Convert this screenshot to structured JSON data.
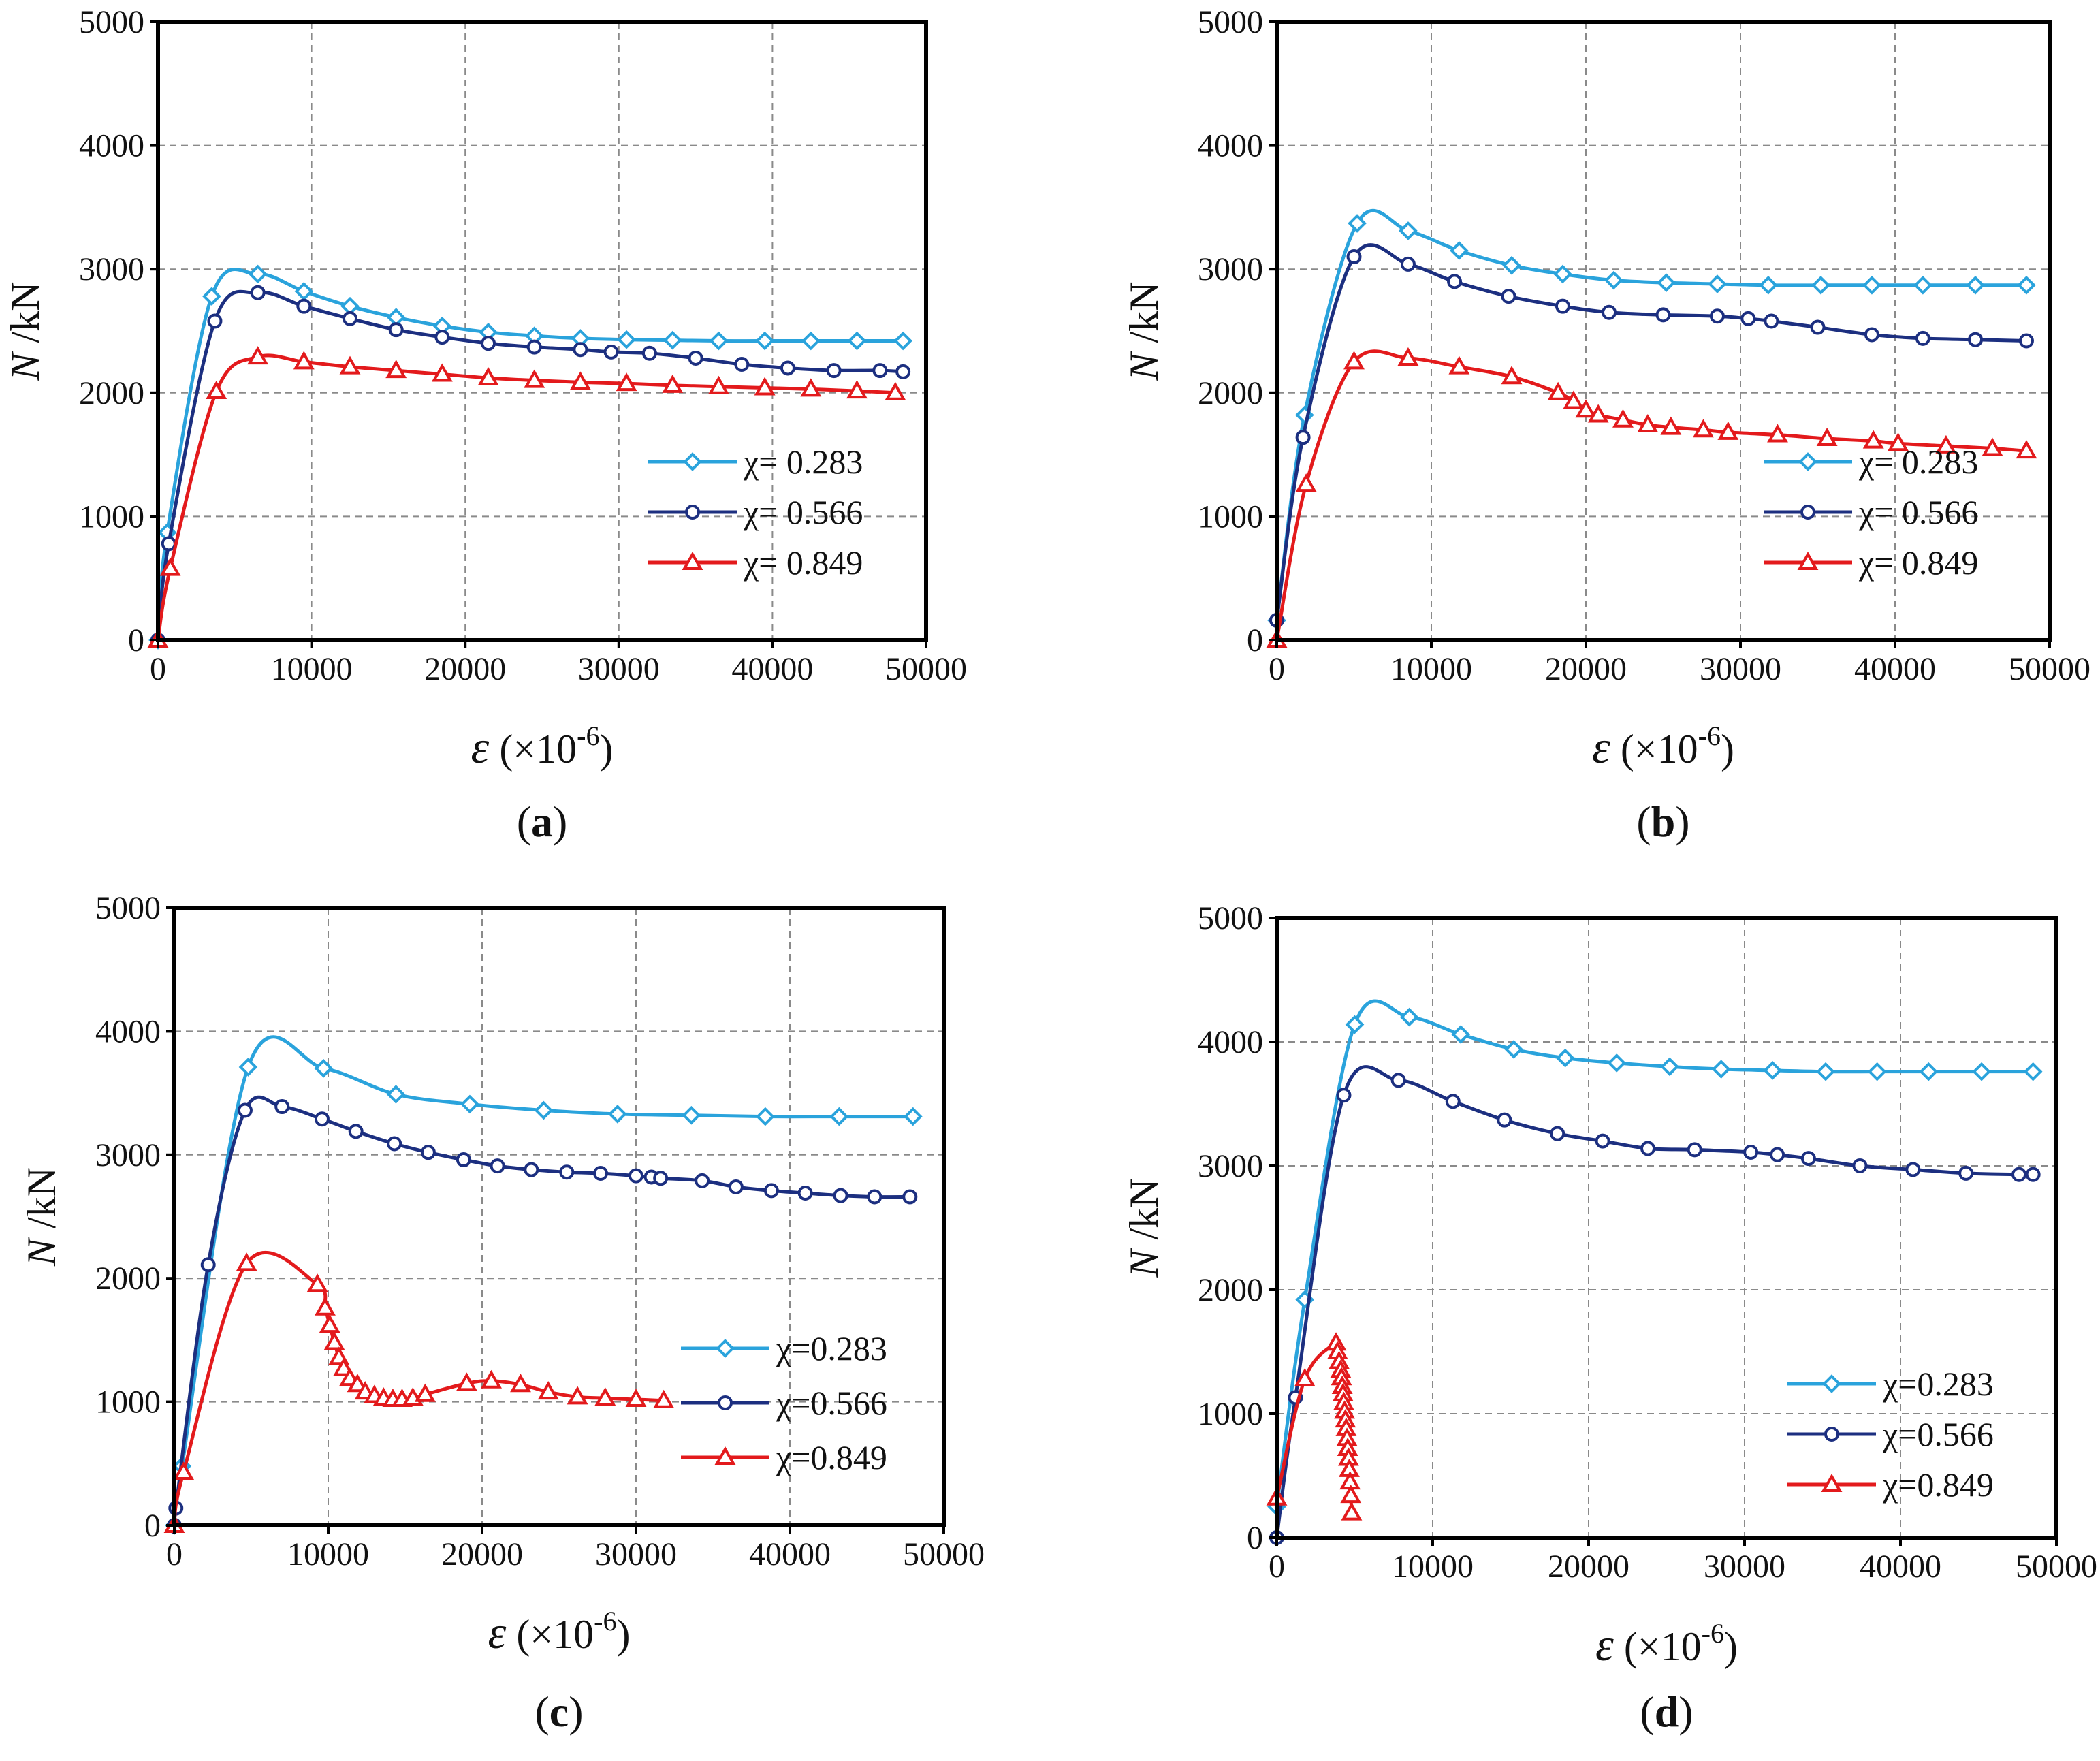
{
  "colors": {
    "cyan": "#2aa3dc",
    "navy": "#1c2f80",
    "red": "#e31a1c",
    "grid": "#8a8a8a",
    "frame": "#000000"
  },
  "chart_data": [
    {
      "type": "line",
      "panel_label": "(a)",
      "panel_letter": "a",
      "xlabel": {
        "symbol": "ε",
        "unit": " (×10",
        "exp": "-6",
        "close": ")"
      },
      "ylabel": {
        "symbol": "N",
        "unit": " /kN"
      },
      "xlim": [
        0,
        50000
      ],
      "ylim": [
        0,
        5000
      ],
      "xticks": [
        "0",
        "10000",
        "20000",
        "30000",
        "40000",
        "50000"
      ],
      "yticks": [
        "0",
        "1000",
        "2000",
        "3000",
        "4000",
        "5000"
      ],
      "grid": true,
      "legend": "center-right",
      "series": [
        {
          "name": "χ= 0.283",
          "color": "#2aa3dc",
          "marker": "diamond",
          "x": [
            0,
            600,
            3500,
            6500,
            9500,
            12500,
            15500,
            18500,
            21500,
            24500,
            27500,
            30500,
            33500,
            36500,
            39500,
            42500,
            45500,
            48500
          ],
          "y": [
            0,
            870,
            2780,
            2960,
            2820,
            2700,
            2610,
            2540,
            2490,
            2460,
            2440,
            2430,
            2425,
            2420,
            2420,
            2420,
            2420,
            2420
          ]
        },
        {
          "name": "χ= 0.566",
          "color": "#1c2f80",
          "marker": "circle",
          "x": [
            0,
            700,
            3700,
            6500,
            9500,
            12500,
            15500,
            18500,
            21500,
            24500,
            27500,
            29500,
            32000,
            35000,
            38000,
            41000,
            44000,
            47000,
            48500
          ],
          "y": [
            0,
            780,
            2580,
            2810,
            2700,
            2600,
            2510,
            2450,
            2400,
            2370,
            2350,
            2330,
            2320,
            2280,
            2230,
            2200,
            2180,
            2180,
            2170
          ]
        },
        {
          "name": "χ= 0.849",
          "color": "#e31a1c",
          "marker": "triangle",
          "x": [
            0,
            800,
            3800,
            6500,
            9500,
            12500,
            15500,
            18500,
            21500,
            24500,
            27500,
            30500,
            33500,
            36500,
            39500,
            42500,
            45500,
            48000
          ],
          "y": [
            0,
            580,
            2010,
            2290,
            2250,
            2210,
            2180,
            2150,
            2120,
            2100,
            2085,
            2075,
            2060,
            2050,
            2040,
            2030,
            2015,
            2000
          ]
        }
      ]
    },
    {
      "type": "line",
      "panel_label": "(b)",
      "panel_letter": "b",
      "xlabel": {
        "symbol": "ε",
        "unit": " (×10",
        "exp": "-6",
        "close": ")"
      },
      "ylabel": {
        "symbol": "N",
        "unit": " /kN"
      },
      "xlim": [
        0,
        50000
      ],
      "ylim": [
        0,
        5000
      ],
      "xticks": [
        "0",
        "10000",
        "20000",
        "30000",
        "40000",
        "50000"
      ],
      "yticks": [
        "0",
        "1000",
        "2000",
        "3000",
        "4000",
        "5000"
      ],
      "grid": true,
      "legend": "center-right",
      "series": [
        {
          "name": "χ= 0.283",
          "color": "#2aa3dc",
          "marker": "diamond",
          "x": [
            0,
            1800,
            5200,
            8500,
            11800,
            15200,
            18500,
            21800,
            25200,
            28500,
            31800,
            35200,
            38500,
            41800,
            45200,
            48500
          ],
          "y": [
            160,
            1820,
            3370,
            3310,
            3150,
            3030,
            2960,
            2910,
            2890,
            2880,
            2870,
            2870,
            2870,
            2870,
            2870,
            2870
          ]
        },
        {
          "name": "χ= 0.566",
          "color": "#1c2f80",
          "marker": "circle",
          "x": [
            0,
            1700,
            5000,
            8500,
            11500,
            15000,
            18500,
            21500,
            25000,
            28500,
            30500,
            32000,
            35000,
            38500,
            41800,
            45200,
            48500
          ],
          "y": [
            160,
            1640,
            3100,
            3040,
            2900,
            2780,
            2700,
            2650,
            2630,
            2620,
            2600,
            2580,
            2530,
            2470,
            2440,
            2430,
            2420
          ]
        },
        {
          "name": "χ= 0.849",
          "color": "#e31a1c",
          "marker": "triangle",
          "x": [
            0,
            1900,
            5000,
            8500,
            11800,
            15200,
            18200,
            19200,
            20000,
            20800,
            22400,
            24000,
            25500,
            27600,
            29200,
            32400,
            35600,
            38600,
            40200,
            43300,
            46300,
            48500
          ],
          "y": [
            0,
            1260,
            2250,
            2280,
            2210,
            2130,
            2000,
            1930,
            1860,
            1820,
            1780,
            1740,
            1720,
            1700,
            1680,
            1660,
            1630,
            1610,
            1590,
            1570,
            1550,
            1530
          ]
        }
      ]
    },
    {
      "type": "line",
      "panel_label": "(c)",
      "panel_letter": "c",
      "xlabel": {
        "symbol": "ε",
        "unit": " (×10",
        "exp": "-6",
        "close": ")"
      },
      "ylabel": {
        "symbol": "N",
        "unit": " /kN"
      },
      "xlim": [
        0,
        50000
      ],
      "ylim": [
        0,
        5000
      ],
      "xticks": [
        "0",
        "10000",
        "20000",
        "30000",
        "40000",
        "50000"
      ],
      "yticks": [
        "0",
        "1000",
        "2000",
        "3000",
        "4000",
        "5000"
      ],
      "grid": true,
      "legend": "lower-right",
      "series": [
        {
          "name": "χ=0.283",
          "color": "#2aa3dc",
          "marker": "diamond",
          "x": [
            0,
            500,
            4800,
            9700,
            14400,
            19200,
            24000,
            28800,
            33600,
            38400,
            43200,
            48000
          ],
          "y": [
            0,
            480,
            3710,
            3700,
            3490,
            3410,
            3360,
            3330,
            3320,
            3310,
            3310,
            3310
          ]
        },
        {
          "name": "χ=0.566",
          "color": "#1c2f80",
          "marker": "circle",
          "x": [
            0,
            100,
            2200,
            4600,
            7000,
            9600,
            11800,
            14300,
            16500,
            18800,
            21000,
            23200,
            25500,
            27700,
            30000,
            31000,
            31600,
            34300,
            36500,
            38800,
            41000,
            43300,
            45500,
            47800
          ],
          "y": [
            0,
            140,
            2110,
            3360,
            3390,
            3290,
            3190,
            3090,
            3020,
            2960,
            2910,
            2880,
            2860,
            2850,
            2830,
            2820,
            2810,
            2790,
            2740,
            2710,
            2690,
            2670,
            2660,
            2660
          ]
        },
        {
          "name": "χ=0.849",
          "color": "#e31a1c",
          "marker": "triangle",
          "x": [
            0,
            600,
            4700,
            9300,
            9800,
            10100,
            10400,
            10700,
            11000,
            11400,
            11900,
            12400,
            13000,
            13600,
            14200,
            14800,
            15500,
            16300,
            19000,
            20600,
            22500,
            24300,
            26200,
            28000,
            30000,
            31800
          ],
          "y": [
            0,
            430,
            2120,
            1950,
            1760,
            1620,
            1480,
            1360,
            1270,
            1190,
            1140,
            1080,
            1050,
            1030,
            1020,
            1020,
            1030,
            1060,
            1150,
            1170,
            1140,
            1080,
            1040,
            1030,
            1020,
            1010
          ]
        }
      ]
    },
    {
      "type": "line",
      "panel_label": "(d)",
      "panel_letter": "d",
      "xlabel": {
        "symbol": "ε",
        "unit": " (×10",
        "exp": "-6",
        "close": ")"
      },
      "ylabel": {
        "symbol": "N",
        "unit": " /kN"
      },
      "xlim": [
        0,
        50000
      ],
      "ylim": [
        0,
        5000
      ],
      "xticks": [
        "0",
        "10000",
        "20000",
        "30000",
        "40000",
        "50000"
      ],
      "yticks": [
        "0",
        "1000",
        "2000",
        "3000",
        "4000",
        "5000"
      ],
      "grid": true,
      "legend": "lower-right",
      "series": [
        {
          "name": "χ=0.283",
          "color": "#2aa3dc",
          "marker": "diamond",
          "x": [
            0,
            1800,
            5000,
            8500,
            11800,
            15200,
            18500,
            21800,
            25200,
            28500,
            31800,
            35200,
            38500,
            41800,
            45200,
            48500
          ],
          "y": [
            250,
            1920,
            4140,
            4200,
            4060,
            3940,
            3870,
            3830,
            3800,
            3780,
            3770,
            3760,
            3760,
            3760,
            3760,
            3760
          ]
        },
        {
          "name": "χ=0.566",
          "color": "#1c2f80",
          "marker": "circle",
          "x": [
            0,
            1200,
            4300,
            7800,
            11300,
            14600,
            18000,
            20900,
            23800,
            26800,
            30400,
            32100,
            34100,
            37400,
            40800,
            44200,
            47600,
            48500
          ],
          "y": [
            0,
            1130,
            3570,
            3690,
            3520,
            3370,
            3260,
            3200,
            3140,
            3130,
            3110,
            3090,
            3060,
            3000,
            2970,
            2940,
            2930,
            2930
          ]
        },
        {
          "name": "χ=0.849",
          "color": "#e31a1c",
          "marker": "triangle",
          "x": [
            0,
            1800,
            3800,
            3900,
            4000,
            4100,
            4150,
            4200,
            4250,
            4300,
            4350,
            4400,
            4450,
            4500,
            4550,
            4600,
            4650,
            4700,
            4750,
            4800
          ],
          "y": [
            320,
            1280,
            1570,
            1500,
            1420,
            1350,
            1290,
            1220,
            1160,
            1090,
            1020,
            950,
            880,
            800,
            720,
            640,
            550,
            450,
            340,
            200
          ]
        }
      ]
    }
  ]
}
